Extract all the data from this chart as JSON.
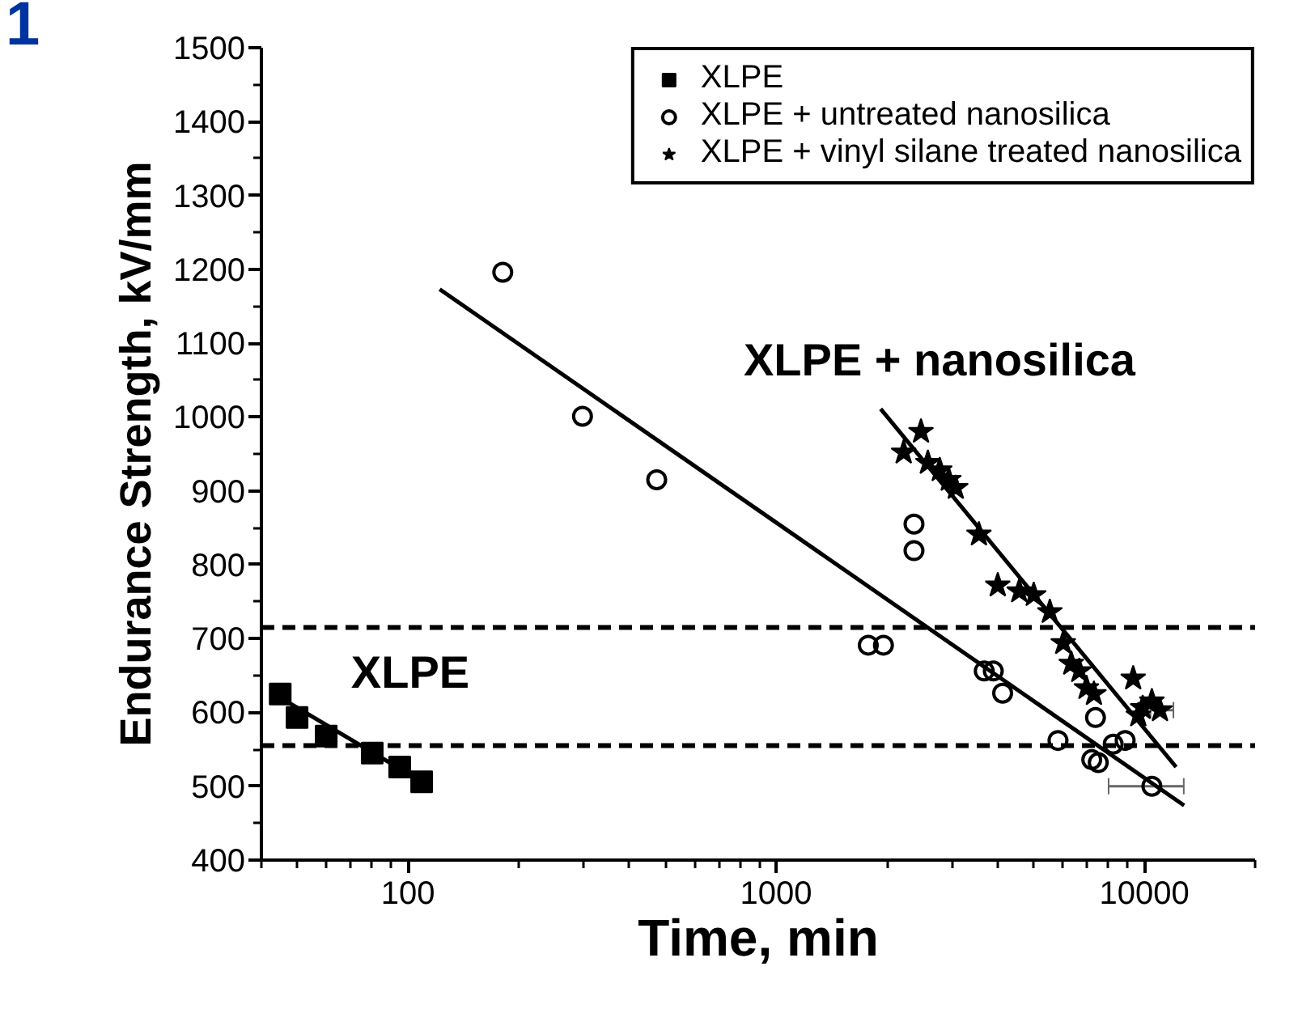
{
  "chart_data": {
    "type": "scatter",
    "xlabel": "Time, min",
    "ylabel": "Endurance Strength, kV/mm",
    "log": "x",
    "xlim": [
      40,
      20000
    ],
    "xticks": [
      100,
      1000,
      10000
    ],
    "ylim": [
      400,
      1500
    ],
    "yticks": [
      400,
      500,
      600,
      700,
      800,
      900,
      1000,
      1100,
      1200,
      1300,
      1400,
      1500
    ],
    "grid": false,
    "legend": "top right",
    "series": [
      {
        "name": "XLPE",
        "marker": "square",
        "color": "#000000",
        "x": [
          45,
          50,
          60,
          80,
          95,
          109
        ],
        "values": [
          625,
          593,
          568,
          545,
          526,
          506
        ]
      },
      {
        "name": "XLPE + untreated nanosilica",
        "marker": "circle",
        "color": "#000000",
        "x": [
          181,
          298,
          474,
          1780,
          1957,
          2369,
          2369,
          3676,
          3890,
          4124,
          5830,
          7200,
          7370,
          7500,
          8234,
          8872,
          10486
        ],
        "values": [
          1196,
          1001,
          915,
          691,
          691,
          855,
          819,
          656,
          656,
          626,
          562,
          536,
          593,
          532,
          557,
          562,
          500
        ],
        "xerrors": [
          null,
          null,
          null,
          null,
          null,
          null,
          null,
          null,
          null,
          null,
          null,
          null,
          null,
          null,
          null,
          null,
          [
            8000,
            12800
          ]
        ]
      },
      {
        "name": "XLPE + vinyl silane treated nanosilica",
        "marker": "star",
        "color": "#000000",
        "x": [
          2221,
          2475,
          2584,
          2783,
          2945,
          3076,
          3556,
          4000,
          4575,
          5010,
          5540,
          6025,
          6335,
          6660,
          6965,
          7300,
          9330,
          9634,
          9900,
          10486,
          11030
        ],
        "values": [
          952,
          980,
          938,
          928,
          915,
          904,
          841,
          772,
          764,
          759,
          736,
          694,
          666,
          656,
          633,
          625,
          646,
          596,
          606,
          615,
          603
        ],
        "xerrors": [
          null,
          null,
          null,
          null,
          null,
          null,
          null,
          null,
          null,
          null,
          null,
          null,
          null,
          null,
          null,
          null,
          null,
          null,
          null,
          null,
          [
            10400,
            12000
          ]
        ]
      },
      {
        "type": "line",
        "color": "#000000",
        "line_style": "solid",
        "x": [
          45,
          110
        ],
        "values": [
          620,
          505
        ]
      },
      {
        "type": "line",
        "color": "#000000",
        "line_style": "solid",
        "x": [
          122,
          12830
        ],
        "values": [
          1173,
          474
        ]
      },
      {
        "type": "line",
        "color": "#000000",
        "line_style": "solid",
        "x": [
          1923,
          12200
        ],
        "values": [
          1011,
          526
        ]
      }
    ],
    "ref_lines": [
      {
        "axis": "y",
        "value": 715,
        "color": "#000000",
        "line_style": "dashed"
      },
      {
        "axis": "y",
        "value": 555,
        "color": "#000000",
        "line_style": "dashed"
      }
    ],
    "annotations": [
      "1",
      "XLPE",
      "XLPE + nanosilica"
    ]
  }
}
